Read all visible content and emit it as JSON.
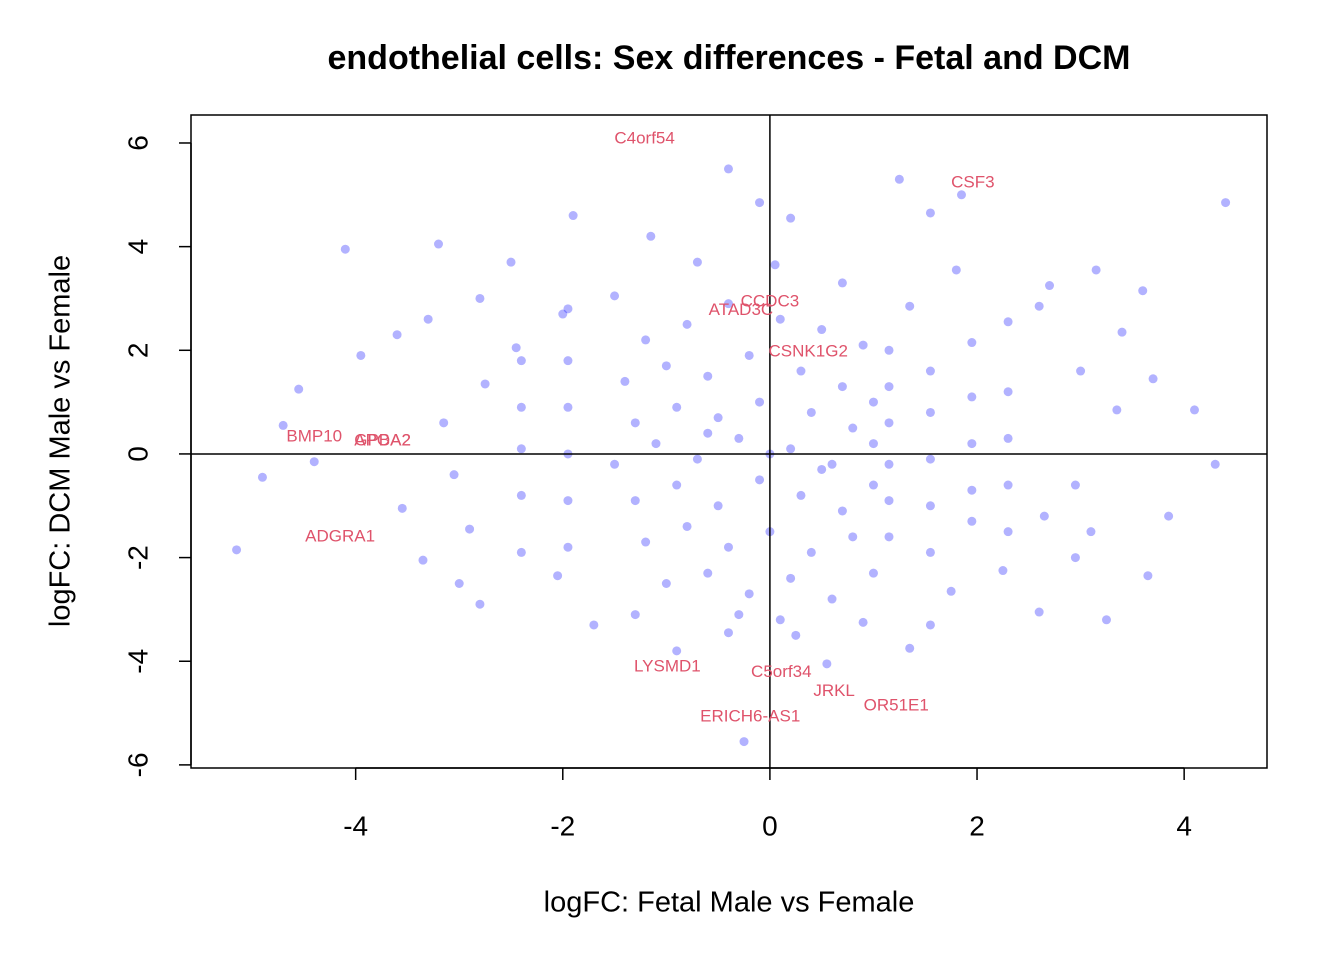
{
  "chart_data": {
    "type": "scatter",
    "title": "endothelial cells: Sex differences - Fetal and DCM",
    "xlabel": "logFC: Fetal Male vs Female",
    "ylabel": "logFC: DCM Male vs Female",
    "color": "#0000ff",
    "label_color": "#df536b",
    "xlim": [
      -5.59,
      4.8
    ],
    "ylim": [
      -6.06,
      6.54
    ],
    "xticks": [
      -4,
      -2,
      0,
      2,
      4
    ],
    "yticks": [
      -6,
      -4,
      -2,
      0,
      2,
      4,
      6
    ],
    "hline": 0,
    "vline": 0,
    "x": [
      4.4,
      -5.15,
      -4.1,
      -4.9,
      1.25,
      1.85,
      -0.4,
      -1.9,
      -3.2,
      3.15,
      3.6,
      4.1,
      4.3,
      3.85,
      3.65,
      3.25,
      -0.25,
      -0.9,
      0.55,
      1.35,
      -3.0,
      -2.8,
      -4.55,
      -4.7,
      -3.95,
      -3.6,
      -2.5,
      -0.1,
      -1.15,
      0.2,
      -1.7,
      2.6,
      2.95,
      3.4,
      3.7,
      -4.4,
      -3.55,
      -3.35,
      -3.3,
      -2.8,
      2.7,
      1.55,
      1.8,
      2.3,
      2.6,
      3.35,
      3.0,
      2.95,
      2.65,
      3.1,
      2.25,
      1.75,
      1.55,
      0.9,
      0.25,
      -0.4,
      -1.3,
      -2.05,
      -2.4,
      -2.9,
      -3.05,
      -3.15,
      -2.75,
      -2.45,
      -2.0,
      -1.5,
      -0.7,
      0.05,
      0.7,
      1.35,
      1.95,
      2.3,
      2.3,
      2.3,
      2.3,
      1.15,
      1.15,
      1.15,
      1.15,
      1.15,
      1.15,
      1.55,
      1.55,
      1.55,
      1.55,
      1.55,
      -1.95,
      -1.95,
      -1.95,
      -1.95,
      -1.95,
      -1.95,
      -2.4,
      -2.4,
      -2.4,
      -2.4,
      1.95,
      1.95,
      1.95,
      1.95,
      -1.2,
      -0.8,
      -0.4,
      0.1,
      0.5,
      0.9,
      -1.4,
      -1.0,
      -0.6,
      -0.2,
      0.3,
      0.7,
      1.0,
      -1.3,
      -0.9,
      -0.5,
      -0.1,
      0.4,
      0.8,
      -1.5,
      -1.1,
      -0.7,
      -0.3,
      0.2,
      0.6,
      1.0,
      -1.3,
      -0.9,
      -0.5,
      -0.1,
      0.3,
      0.7,
      1.0,
      -1.2,
      -0.8,
      -0.4,
      0.0,
      0.4,
      0.8,
      -1.0,
      -0.6,
      -0.2,
      0.2,
      0.6,
      1.0,
      -0.3,
      0.1,
      0.5,
      -0.6,
      0.0
    ],
    "y": [
      4.85,
      -1.85,
      3.95,
      -0.45,
      5.3,
      5.0,
      5.5,
      4.6,
      4.05,
      3.55,
      3.15,
      0.85,
      -0.2,
      -1.2,
      -2.35,
      -3.2,
      -5.55,
      -3.8,
      -4.05,
      -3.75,
      -2.5,
      -2.9,
      1.25,
      0.55,
      1.9,
      2.3,
      3.7,
      4.85,
      4.2,
      4.55,
      -3.3,
      -3.05,
      -2.0,
      2.35,
      1.45,
      -0.15,
      -1.05,
      -2.05,
      2.6,
      3.0,
      3.25,
      4.65,
      3.55,
      2.55,
      2.85,
      0.85,
      1.6,
      -0.6,
      -1.2,
      -1.5,
      -2.25,
      -2.65,
      -3.3,
      -3.25,
      -3.5,
      -3.45,
      -3.1,
      -2.35,
      -1.9,
      -1.45,
      -0.4,
      0.6,
      1.35,
      2.05,
      2.7,
      3.05,
      3.7,
      3.65,
      3.3,
      2.85,
      2.15,
      1.2,
      0.3,
      -0.6,
      -1.5,
      2.0,
      1.3,
      0.6,
      -0.2,
      -0.9,
      -1.6,
      1.6,
      0.8,
      -0.1,
      -1.0,
      -1.9,
      2.8,
      1.8,
      0.9,
      0.0,
      -0.9,
      -1.8,
      1.8,
      0.9,
      0.1,
      -0.8,
      1.1,
      0.2,
      -0.7,
      -1.3,
      2.2,
      2.5,
      2.9,
      2.6,
      2.4,
      2.1,
      1.4,
      1.7,
      1.5,
      1.9,
      1.6,
      1.3,
      1.0,
      0.6,
      0.9,
      0.7,
      1.0,
      0.8,
      0.5,
      -0.2,
      0.2,
      -0.1,
      0.3,
      0.1,
      -0.2,
      0.2,
      -0.9,
      -0.6,
      -1.0,
      -0.5,
      -0.8,
      -1.1,
      -0.6,
      -1.7,
      -1.4,
      -1.8,
      -1.5,
      -1.9,
      -1.6,
      -2.5,
      -2.3,
      -2.7,
      -2.4,
      -2.8,
      -2.3,
      -3.1,
      -3.2,
      -0.3,
      0.4,
      0.0
    ],
    "annotations": [
      {
        "text": "C4orf54",
        "x": -1.21,
        "y": 6.08
      },
      {
        "text": "CSF3",
        "x": 1.96,
        "y": 5.23
      },
      {
        "text": "CCDC3",
        "x": 0.0,
        "y": 2.93
      },
      {
        "text": "ATAD3C",
        "x": -0.28,
        "y": 2.77
      },
      {
        "text": "CSNK1G2",
        "x": 0.37,
        "y": 1.97
      },
      {
        "text": "BMP10",
        "x": -4.4,
        "y": 0.33
      },
      {
        "text": "GPBA2",
        "x": -3.74,
        "y": 0.25
      },
      {
        "text": "APOA2",
        "x": -3.74,
        "y": 0.25
      },
      {
        "text": "ADGRA1",
        "x": -4.15,
        "y": -1.6
      },
      {
        "text": "LYSMD1",
        "x": -0.99,
        "y": -4.11
      },
      {
        "text": "C5orf34",
        "x": 0.11,
        "y": -4.22
      },
      {
        "text": "JRKL",
        "x": 0.62,
        "y": -4.58
      },
      {
        "text": "OR51E1",
        "x": 1.22,
        "y": -4.86
      },
      {
        "text": "ERICH6-AS1",
        "x": -0.19,
        "y": -5.08
      }
    ]
  }
}
